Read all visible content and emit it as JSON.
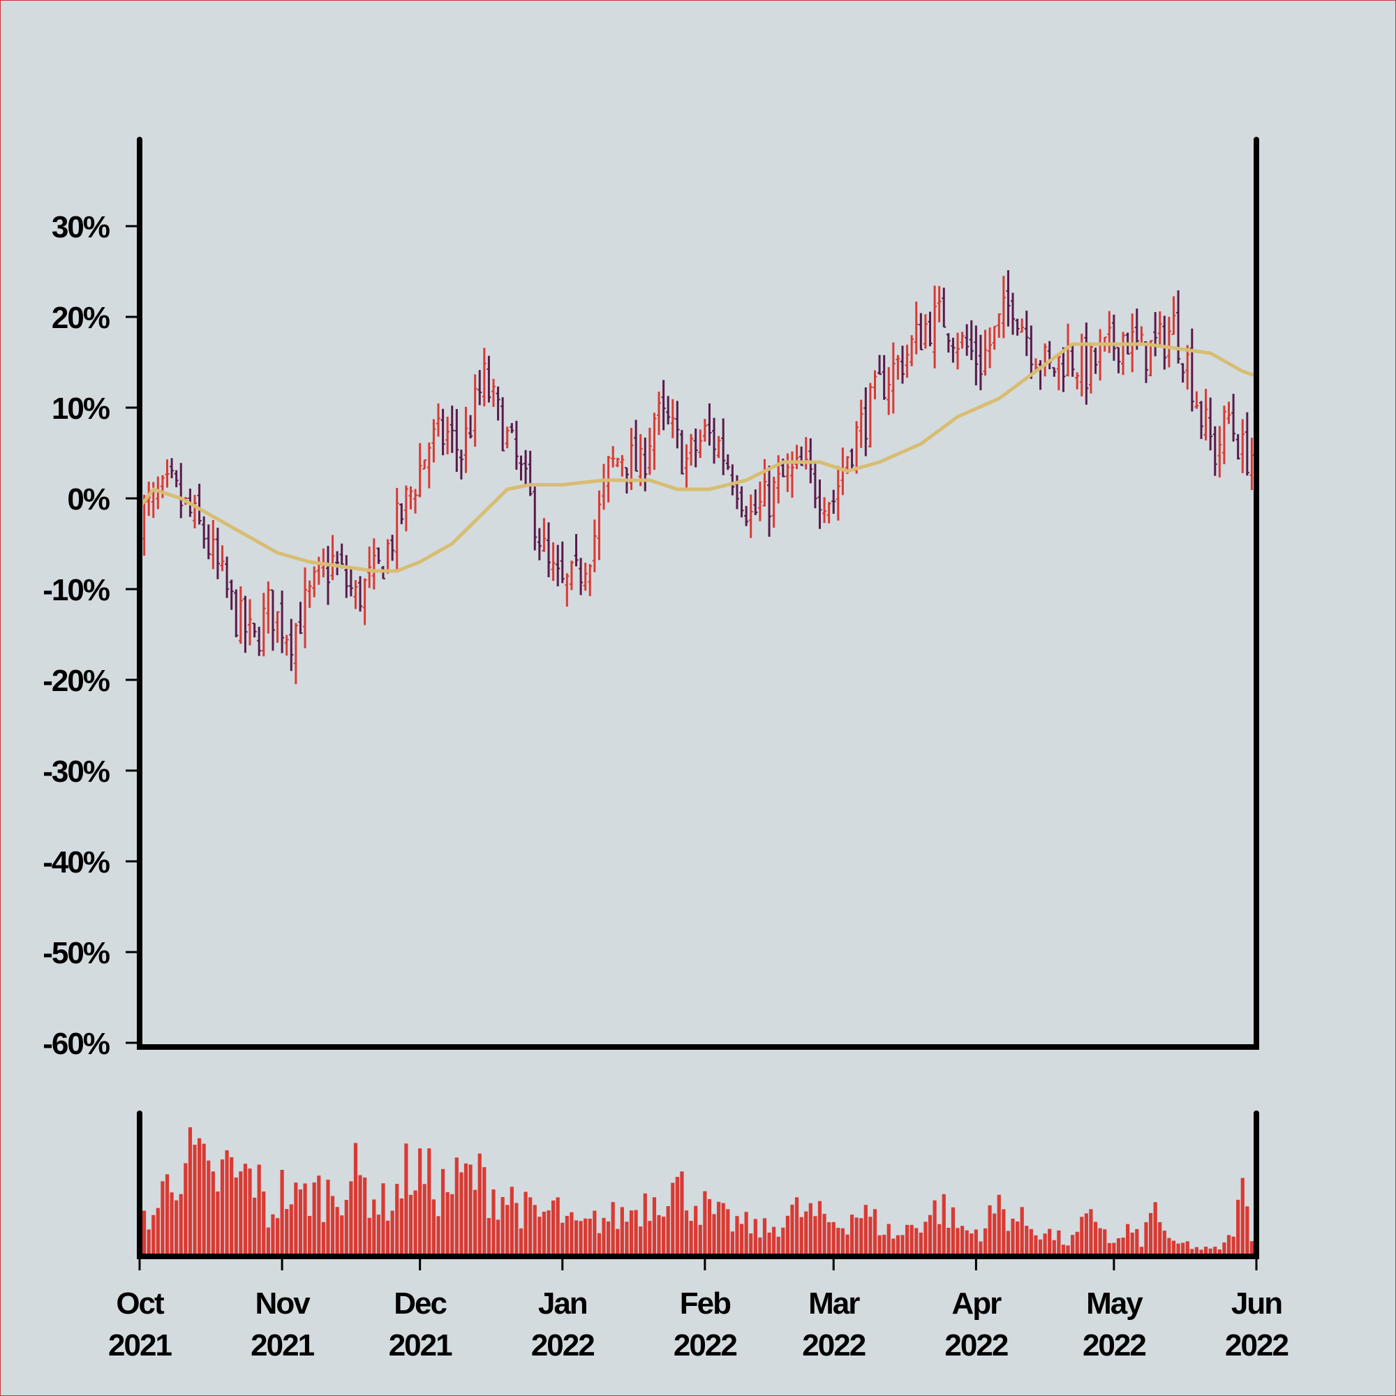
{
  "chart_data": [
    {
      "type": "ohlc",
      "panel": "price",
      "title": "",
      "xlabel": "",
      "ylabel": "",
      "ylim": [
        -60,
        40
      ],
      "y_ticks": [
        30,
        20,
        10,
        0,
        -10,
        -20,
        -30,
        -40,
        -50,
        -60
      ],
      "y_tick_labels": [
        "30%",
        "20%",
        "10%",
        "0%",
        "-10%",
        "-20%",
        "-30%",
        "-40%",
        "-50%",
        "-60%"
      ],
      "y_unit": "percent",
      "x_range": [
        "2021-10-01",
        "2022-06-01"
      ],
      "x_ticks": [
        "2021-10-01",
        "2021-11-01",
        "2021-12-01",
        "2022-01-01",
        "2022-02-01",
        "2022-03-01",
        "2022-04-01",
        "2022-05-01",
        "2022-06-01"
      ],
      "x_tick_labels": [
        [
          "Oct",
          "2021"
        ],
        [
          "Nov",
          "2021"
        ],
        [
          "Dec",
          "2021"
        ],
        [
          "Jan",
          "2022"
        ],
        [
          "Feb",
          "2022"
        ],
        [
          "Mar",
          "2022"
        ],
        [
          "Apr",
          "2022"
        ],
        [
          "May",
          "2022"
        ],
        [
          "Jun",
          "2022"
        ]
      ],
      "up_color": "#d93a33",
      "down_color": "#5a1a4a",
      "ma_color": "#d8bd72",
      "axis_color": "#000000",
      "grid": false,
      "series": [
        {
          "kind": "close",
          "points": [
            [
              "2021-10-01",
              -2
            ],
            [
              "2021-10-08",
              1
            ],
            [
              "2021-10-15",
              -4
            ],
            [
              "2021-10-22",
              -13
            ],
            [
              "2021-10-26",
              -16
            ],
            [
              "2021-10-29",
              -12
            ],
            [
              "2021-11-03",
              -15
            ],
            [
              "2021-11-08",
              -10
            ],
            [
              "2021-11-12",
              -7
            ],
            [
              "2021-11-17",
              -11
            ],
            [
              "2021-11-22",
              -8
            ],
            [
              "2021-11-26",
              -3
            ],
            [
              "2021-11-30",
              2
            ],
            [
              "2021-12-03",
              6
            ],
            [
              "2021-12-07",
              7
            ],
            [
              "2021-12-10",
              5
            ],
            [
              "2021-12-13",
              10
            ],
            [
              "2021-12-15",
              13
            ],
            [
              "2021-12-18",
              9
            ],
            [
              "2021-12-22",
              4
            ],
            [
              "2021-12-26",
              -2
            ],
            [
              "2021-12-29",
              -8
            ],
            [
              "2022-01-01",
              -10
            ],
            [
              "2022-01-04",
              -9
            ],
            [
              "2022-01-08",
              -4
            ],
            [
              "2022-01-11",
              3
            ],
            [
              "2022-01-14",
              5
            ],
            [
              "2022-01-18",
              3
            ],
            [
              "2022-01-21",
              9
            ],
            [
              "2022-01-24",
              8
            ],
            [
              "2022-01-28",
              4
            ],
            [
              "2022-02-01",
              7
            ],
            [
              "2022-02-04",
              6
            ],
            [
              "2022-02-08",
              2
            ],
            [
              "2022-02-11",
              -2
            ],
            [
              "2022-02-15",
              0
            ],
            [
              "2022-02-18",
              2
            ],
            [
              "2022-02-22",
              3
            ],
            [
              "2022-02-26",
              1
            ],
            [
              "2022-03-01",
              0
            ],
            [
              "2022-03-04",
              5
            ],
            [
              "2022-03-08",
              9
            ],
            [
              "2022-03-12",
              13
            ],
            [
              "2022-03-17",
              16
            ],
            [
              "2022-03-21",
              19
            ],
            [
              "2022-03-25",
              20
            ],
            [
              "2022-03-29",
              17
            ],
            [
              "2022-04-02",
              15
            ],
            [
              "2022-04-06",
              19
            ],
            [
              "2022-04-09",
              22
            ],
            [
              "2022-04-13",
              17
            ],
            [
              "2022-04-17",
              14
            ],
            [
              "2022-04-21",
              16
            ],
            [
              "2022-04-25",
              14
            ],
            [
              "2022-04-29",
              16
            ],
            [
              "2022-05-03",
              18
            ],
            [
              "2022-05-07",
              16
            ],
            [
              "2022-05-11",
              17
            ],
            [
              "2022-05-14",
              19
            ],
            [
              "2022-05-17",
              15
            ],
            [
              "2022-05-20",
              9
            ],
            [
              "2022-05-23",
              5
            ],
            [
              "2022-05-26",
              9
            ],
            [
              "2022-05-29",
              5
            ],
            [
              "2022-06-01",
              5
            ]
          ]
        },
        {
          "kind": "moving_average",
          "points": [
            [
              "2021-10-01",
              -1
            ],
            [
              "2021-10-04",
              1
            ],
            [
              "2021-10-10",
              0
            ],
            [
              "2021-10-17",
              -2
            ],
            [
              "2021-10-24",
              -4
            ],
            [
              "2021-10-31",
              -6
            ],
            [
              "2021-11-07",
              -7
            ],
            [
              "2021-11-14",
              -7.5
            ],
            [
              "2021-11-21",
              -8
            ],
            [
              "2021-11-26",
              -8
            ],
            [
              "2021-12-01",
              -7
            ],
            [
              "2021-12-08",
              -5
            ],
            [
              "2021-12-14",
              -2
            ],
            [
              "2021-12-20",
              1
            ],
            [
              "2021-12-25",
              1.5
            ],
            [
              "2022-01-01",
              1.5
            ],
            [
              "2022-01-10",
              2
            ],
            [
              "2022-01-20",
              2
            ],
            [
              "2022-01-26",
              1
            ],
            [
              "2022-02-02",
              1
            ],
            [
              "2022-02-10",
              2
            ],
            [
              "2022-02-18",
              4
            ],
            [
              "2022-02-26",
              4
            ],
            [
              "2022-03-04",
              3
            ],
            [
              "2022-03-11",
              4
            ],
            [
              "2022-03-20",
              6
            ],
            [
              "2022-03-28",
              9
            ],
            [
              "2022-04-06",
              11
            ],
            [
              "2022-04-14",
              14
            ],
            [
              "2022-04-22",
              17
            ],
            [
              "2022-04-30",
              17
            ],
            [
              "2022-05-08",
              17
            ],
            [
              "2022-05-15",
              16.5
            ],
            [
              "2022-05-22",
              16
            ],
            [
              "2022-05-29",
              14
            ],
            [
              "2022-06-01",
              13.5
            ]
          ]
        }
      ]
    },
    {
      "type": "bar",
      "panel": "volume",
      "title": "",
      "xlabel": "",
      "ylabel": "",
      "color": "#d93a33",
      "x_range": [
        "2021-10-01",
        "2022-06-01"
      ],
      "values_relative": [
        0.32,
        0.32,
        0.58,
        0.78,
        0.75,
        0.52,
        0.68,
        0.58,
        0.65,
        0.3,
        0.52,
        0.42,
        0.5,
        0.48,
        0.55,
        0.62,
        0.52,
        0.4,
        0.5,
        0.7,
        0.6,
        0.52,
        0.55,
        0.62,
        0.58,
        0.48,
        0.45,
        0.35,
        0.3,
        0.38,
        0.25,
        0.22,
        0.28,
        0.3,
        0.32,
        0.4,
        0.48,
        0.55,
        0.5,
        0.42,
        0.32,
        0.28,
        0.25,
        0.22,
        0.2,
        0.3,
        0.35,
        0.32,
        0.28,
        0.25,
        0.35,
        0.3,
        0.22,
        0.15,
        0.25,
        0.3,
        0.4,
        0.25,
        0.18,
        0.22,
        0.4,
        0.3,
        0.25,
        0.2,
        0.15,
        0.1,
        0.25,
        0.3,
        0.08,
        0.2,
        0.12,
        0.4,
        0.08,
        0.1,
        0.06,
        0.05,
        0.1,
        0.48,
        0.08
      ]
    }
  ]
}
